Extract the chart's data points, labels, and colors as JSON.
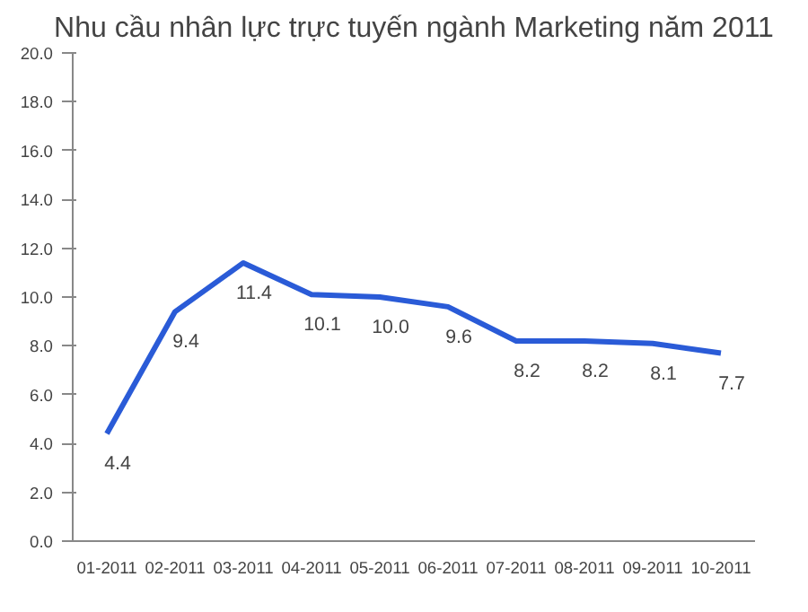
{
  "chart_data": {
    "type": "line",
    "title": "Nhu cầu nhân lực trực tuyến ngành Marketing năm 2011",
    "categories": [
      "01-2011",
      "02-2011",
      "03-2011",
      "04-2011",
      "05-2011",
      "06-2011",
      "07-2011",
      "08-2011",
      "09-2011",
      "10-2011"
    ],
    "series": [
      {
        "color": "#2a5bd7",
        "values": [
          4.4,
          9.4,
          11.4,
          10.1,
          10.0,
          9.6,
          8.2,
          8.2,
          8.1,
          7.7
        ]
      }
    ],
    "ylim": [
      0,
      20
    ],
    "yticks": [
      {
        "value": 0,
        "label": "0.0"
      },
      {
        "value": 2,
        "label": "2.0"
      },
      {
        "value": 4,
        "label": "4.0"
      },
      {
        "value": 6,
        "label": "6.0"
      },
      {
        "value": 8,
        "label": "8.0"
      },
      {
        "value": 10,
        "label": "10.0"
      },
      {
        "value": 12,
        "label": "12.0"
      },
      {
        "value": 14,
        "label": "14.0"
      },
      {
        "value": 16,
        "label": "16.0"
      },
      {
        "value": 18,
        "label": "18.0"
      },
      {
        "value": 20,
        "label": "20.0"
      }
    ],
    "value_labels": [
      "4.4",
      "9.4",
      "11.4",
      "10.1",
      "10.0",
      "9.6",
      "8.2",
      "8.2",
      "8.1",
      "7.7"
    ],
    "grid": false,
    "marker": "none",
    "line_style": "solid"
  }
}
